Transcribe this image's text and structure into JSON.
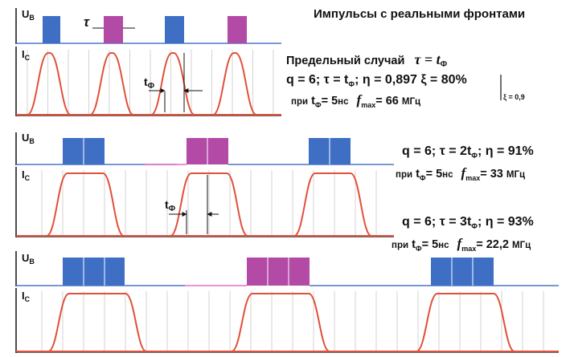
{
  "title": "Импульсы с реальными фронтами",
  "axis": {
    "u": "U",
    "u_sub": "В",
    "i": "I",
    "i_sub": "С"
  },
  "annotations": {
    "tau": "τ",
    "t": "t",
    "t_sub": "Ф"
  },
  "panel1": {
    "limit_case": "Предельный случай",
    "limit_formula": "τ = t",
    "limit_formula_sub": "Ф",
    "main_line": "q = 6;  τ = t",
    "main_line_sub": "Ф",
    "main_line_rest": ";   η = 0,897 ξ = 80%",
    "xi_note": "ξ = 0,9",
    "cond_prefix": "при",
    "cond_t": "t",
    "cond_t_sub": "Ф",
    "cond_eq": "= 5",
    "cond_unit": "нс",
    "fmax_f": "f",
    "fmax_sub": "max",
    "fmax_val": "= 66",
    "fmax_unit": "МГц"
  },
  "panel2": {
    "main_line": "q = 6;  τ = 2t",
    "main_line_sub": "Ф",
    "main_line_rest": ";  η = 91%",
    "cond_prefix": "при",
    "cond_t": "t",
    "cond_t_sub": "Ф",
    "cond_eq": "= 5",
    "cond_unit": "нс",
    "fmax_f": "f",
    "fmax_sub": "max",
    "fmax_val": "= 33",
    "fmax_unit": "МГц"
  },
  "panel3": {
    "main_line": "q = 6;  τ = 3t",
    "main_line_sub": "Ф",
    "main_line_rest": ";  η = 93%",
    "cond_prefix": "при",
    "cond_t": "t",
    "cond_t_sub": "Ф",
    "cond_eq": "= 5",
    "cond_unit": "нс",
    "fmax_f": "f",
    "fmax_sub": "max",
    "fmax_val": "= 22,2",
    "fmax_unit": "МГц"
  },
  "colors": {
    "blue_pulse": "#3f6fc4",
    "magenta_pulse": "#b24aa6",
    "current_curve": "#e0503a",
    "baseline_blue": "#4a78c8",
    "baseline_pink": "#e86fc8",
    "grid": "#c8c8c8"
  }
}
